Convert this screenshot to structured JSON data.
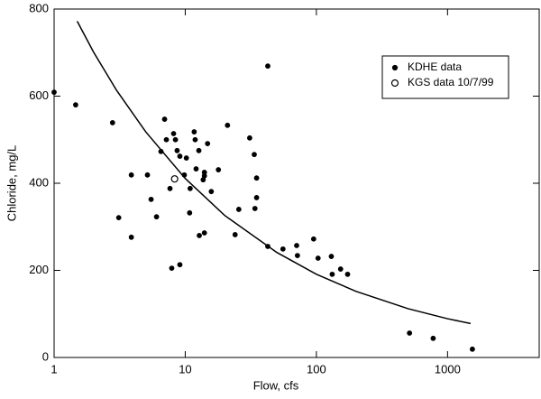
{
  "chart_data": {
    "type": "scatter",
    "xlabel": "Flow, cfs",
    "ylabel": "Chloride, mg/L",
    "xscale": "log",
    "xlim": [
      1,
      5000
    ],
    "ylim": [
      0,
      800
    ],
    "xticks": [
      1,
      10,
      100,
      1000
    ],
    "yticks": [
      0,
      200,
      400,
      600,
      800
    ],
    "legend": "upper right",
    "series": [
      {
        "name": "KDHE data",
        "type": "scatter",
        "marker": "filled",
        "color": "#000000",
        "x": [
          1,
          1.46,
          2.79,
          3.11,
          3.88,
          3.88,
          5.15,
          5.49,
          6.04,
          6.53,
          6.96,
          7.18,
          7.65,
          7.89,
          8.15,
          8.42,
          8.67,
          9.1,
          9.1,
          9.84,
          10.2,
          10.8,
          10.9,
          11.7,
          11.9,
          12.1,
          12.7,
          12.8,
          13.7,
          14,
          14,
          14,
          14.8,
          15.8,
          17.9,
          21,
          24,
          25.6,
          31,
          33.6,
          34,
          35,
          35,
          42.6,
          42.6,
          55.6,
          70.7,
          71.7,
          95.3,
          103,
          130,
          132,
          153,
          173,
          513,
          777,
          1547
        ],
        "values": [
          609,
          580,
          539,
          321,
          419,
          276,
          419,
          363,
          323,
          473,
          547,
          500,
          388,
          205,
          514,
          500,
          475,
          462,
          213,
          419,
          458,
          332,
          388,
          518,
          500,
          433,
          475,
          280,
          408,
          425,
          417,
          286,
          491,
          381,
          431,
          533,
          282,
          340,
          504,
          466,
          342,
          412,
          367,
          669,
          255,
          249,
          257,
          234,
          272,
          228,
          232,
          191,
          203,
          191,
          56,
          44,
          19
        ]
      },
      {
        "name": "KGS data 10/7/99",
        "type": "scatter",
        "marker": "open",
        "color": "#000000",
        "x": [
          8.3
        ],
        "values": [
          410
        ]
      },
      {
        "type": "line",
        "color": "#000000",
        "x": [
          1.5,
          2,
          3,
          5,
          10,
          20,
          50,
          100,
          200,
          500,
          1000,
          1500
        ],
        "values": [
          772,
          701,
          613,
          518,
          411,
          326,
          241,
          191,
          152,
          112,
          89,
          78
        ]
      }
    ]
  }
}
